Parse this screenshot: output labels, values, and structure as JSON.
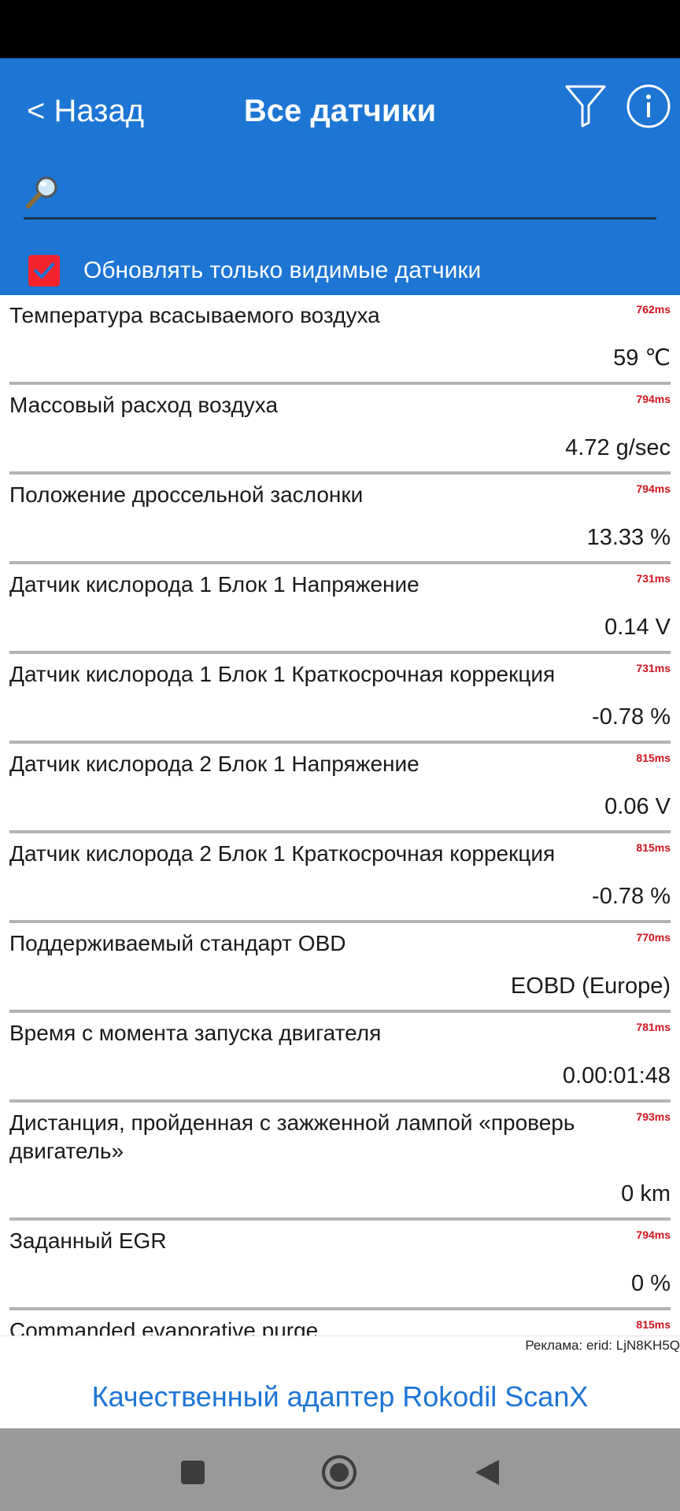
{
  "header": {
    "back_label": "< Назад",
    "title": "Все датчики",
    "accent_color": "#1d75d4"
  },
  "search": {
    "value": "",
    "placeholder": ""
  },
  "update_visible_only": {
    "label": "Обновлять только видимые датчики",
    "checked": true
  },
  "sensors": [
    {
      "name": "Температура всасываемого воздуха",
      "value": "59 ℃",
      "time": "762ms"
    },
    {
      "name": "Массовый расход воздуха",
      "value": "4.72 g/sec",
      "time": "794ms"
    },
    {
      "name": "Положение дроссельной заслонки",
      "value": "13.33 %",
      "time": "794ms"
    },
    {
      "name": "Датчик кислорода 1 Блок 1 Напряжение",
      "value": "0.14 V",
      "time": "731ms"
    },
    {
      "name": "Датчик кислорода 1 Блок 1 Краткосрочная коррекция",
      "value": "-0.78 %",
      "time": "731ms"
    },
    {
      "name": "Датчик кислорода 2 Блок 1 Напряжение",
      "value": "0.06 V",
      "time": "815ms"
    },
    {
      "name": "Датчик кислорода 2 Блок 1 Краткосрочная коррекция",
      "value": "-0.78 %",
      "time": "815ms"
    },
    {
      "name": "Поддерживаемый стандарт OBD",
      "value": "EOBD (Europe)",
      "time": "770ms"
    },
    {
      "name": "Время с момента запуска двигателя",
      "value": "0.00:01:48",
      "time": "781ms"
    },
    {
      "name": "Дистанция, пройденная с зажженной лампой «проверь двигатель»",
      "value": "0 km",
      "time": "793ms"
    },
    {
      "name": "Заданный EGR",
      "value": "0 %",
      "time": "794ms"
    },
    {
      "name": "Commanded evaporative purge",
      "value": "",
      "time": "815ms"
    }
  ],
  "ad": {
    "tag": "Реклама: erid: LjN8KH5Q",
    "link_text": "Качественный адаптер Rokodil ScanX"
  },
  "nav": {
    "buttons": [
      "recents",
      "home",
      "back"
    ]
  }
}
